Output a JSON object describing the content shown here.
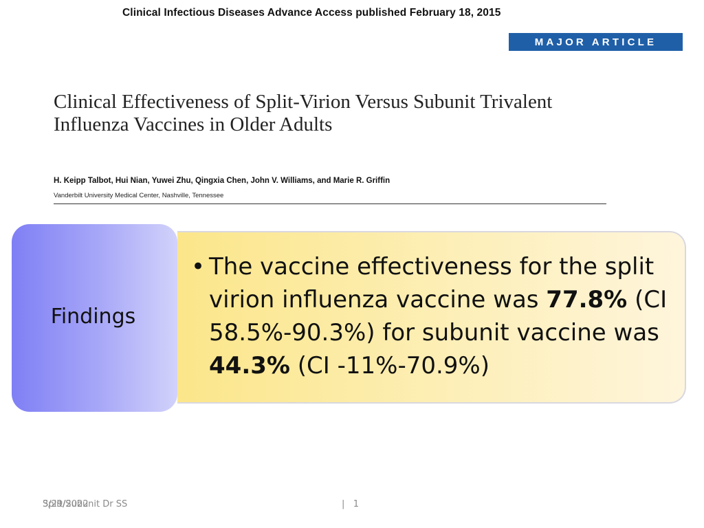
{
  "header": {
    "publication_line": "Clinical Infectious Diseases Advance Access published February 18, 2015",
    "badge": "MAJOR ARTICLE"
  },
  "paper": {
    "title": "Clinical Effectiveness of Split-Virion Versus Subunit Trivalent Influenza Vaccines in Older Adults",
    "authors": "H. Keipp Talbot, Hui Nian, Yuwei Zhu, Qingxia Chen, John V. Williams, and Marie R. Griffin",
    "affiliation": "Vanderbilt University Medical Center, Nashville, Tennessee"
  },
  "findings": {
    "label": "Findings",
    "bullet": "•",
    "text_1": "The vaccine effectiveness for the split virion influenza vaccine was ",
    "value_1": "77.8%",
    "text_2": " (CI 58.5%-90.3%) for subunit vaccine was ",
    "value_2": "44.3%",
    "text_3": " (CI -11%-70.9%)"
  },
  "footer": {
    "date": "3/29/2022",
    "title": "Split/Subunit Dr SS",
    "separator": "|",
    "page": "1"
  }
}
